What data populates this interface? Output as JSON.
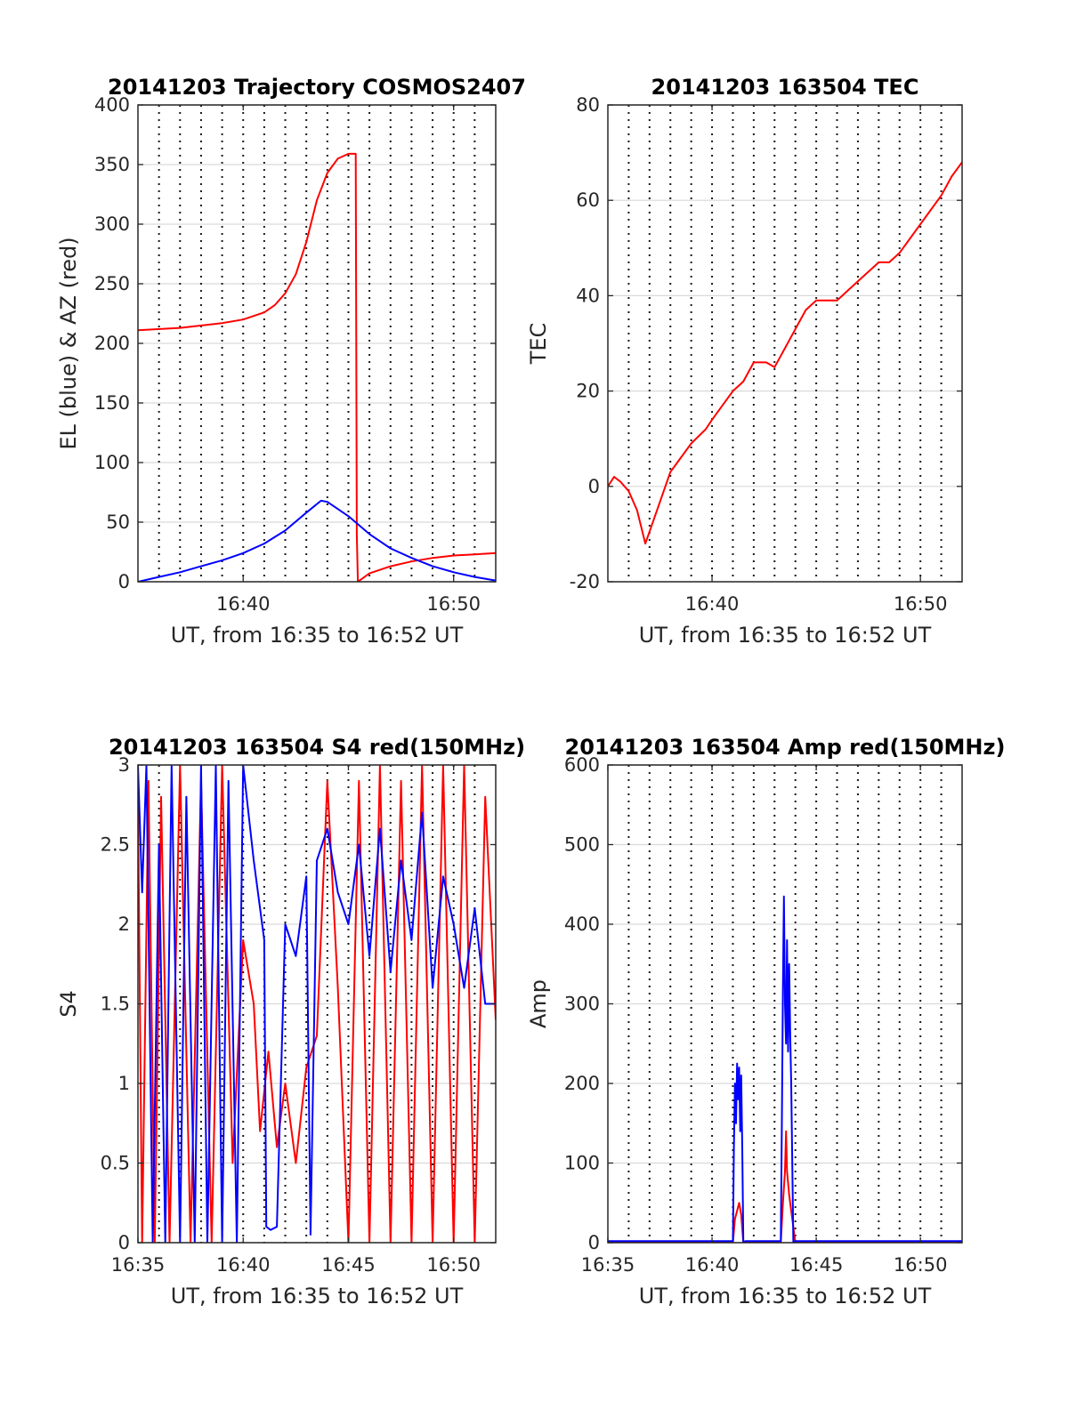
{
  "colors": {
    "red": "#ff0000",
    "blue": "#0000ff"
  },
  "chart_data": [
    {
      "type": "line",
      "title": "20141203 Trajectory COSMOS2407",
      "xlabel": "UT, from 16:35 to 16:52 UT",
      "ylabel": "EL (blue) & AZ (red)",
      "xlim_minutes": [
        0,
        17
      ],
      "ylim": [
        0,
        400
      ],
      "yticks": [
        0,
        50,
        100,
        150,
        200,
        250,
        300,
        350,
        400
      ],
      "yticklabels": [
        "0",
        "50",
        "100",
        "150",
        "200",
        "250",
        "300",
        "350",
        "400"
      ],
      "xticks_minutes": [
        5,
        15
      ],
      "xticklabels": [
        "16:40",
        "16:50"
      ],
      "vgrid_minutes": [
        1,
        2,
        3,
        4,
        5,
        6,
        7,
        8,
        9,
        10,
        11,
        12,
        13,
        14,
        15,
        16
      ],
      "series": [
        {
          "color": "red",
          "x": [
            0,
            2,
            4,
            5,
            6,
            6.5,
            7,
            7.5,
            8,
            8.5,
            9,
            9.5,
            10,
            10.35,
            10.4,
            10.45,
            11,
            12,
            13,
            14,
            15,
            16,
            17
          ],
          "y": [
            211,
            213,
            217,
            220,
            226,
            232,
            242,
            258,
            285,
            320,
            343,
            355,
            359,
            359,
            40,
            0,
            7,
            13,
            17,
            20,
            22,
            23,
            24
          ]
        },
        {
          "color": "blue",
          "x": [
            0,
            1,
            2,
            3,
            4,
            5,
            6,
            7,
            8,
            8.7,
            9,
            10,
            11,
            12,
            13,
            14,
            15,
            16,
            17
          ],
          "y": [
            0,
            4,
            8,
            13,
            18,
            24,
            32,
            43,
            58,
            68,
            67,
            55,
            40,
            28,
            20,
            13,
            8,
            4,
            1
          ]
        }
      ]
    },
    {
      "type": "line",
      "title": "20141203 163504 TEC",
      "xlabel": "UT, from 16:35 to 16:52 UT",
      "ylabel": "TEC",
      "xlim_minutes": [
        0,
        17
      ],
      "ylim": [
        -20,
        80
      ],
      "yticks": [
        -20,
        0,
        20,
        40,
        60,
        80
      ],
      "yticklabels": [
        "-20",
        "0",
        "20",
        "40",
        "60",
        "80"
      ],
      "xticks_minutes": [
        5,
        15
      ],
      "xticklabels": [
        "16:40",
        "16:50"
      ],
      "vgrid_minutes": [
        1,
        2,
        3,
        4,
        5,
        6,
        7,
        8,
        9,
        10,
        11,
        12,
        13,
        14,
        15,
        16
      ],
      "series": [
        {
          "color": "red",
          "x": [
            0,
            0.3,
            0.6,
            1,
            1.4,
            1.8,
            2.2,
            3,
            4,
            4.7,
            5,
            5.5,
            6,
            6.5,
            7,
            7.6,
            8,
            8.5,
            9,
            9.5,
            10,
            10.5,
            11,
            11.5,
            12,
            12.5,
            13,
            13.5,
            14,
            14.5,
            15,
            15.5,
            16,
            16.5,
            17
          ],
          "y": [
            0,
            2,
            1,
            -1,
            -5,
            -12,
            -7,
            3,
            9,
            12,
            14,
            17,
            20,
            22,
            26,
            26,
            25,
            29,
            33,
            37,
            39,
            39,
            39,
            41,
            43,
            45,
            47,
            47,
            49,
            52,
            55,
            58,
            61,
            65,
            68
          ]
        }
      ]
    },
    {
      "type": "line",
      "title": "20141203 163504 S4 red(150MHz)",
      "xlabel": "UT, from 16:35 to 16:52 UT",
      "ylabel": "S4",
      "xlim_minutes": [
        0,
        17
      ],
      "ylim": [
        0,
        3
      ],
      "yticks": [
        0,
        0.5,
        1,
        1.5,
        2,
        2.5,
        3
      ],
      "yticklabels": [
        "0",
        "0.5",
        "1",
        "1.5",
        "2",
        "2.5",
        "3"
      ],
      "xticks_minutes": [
        0,
        5,
        10,
        15
      ],
      "xticklabels": [
        "16:35",
        "16:40",
        "16:45",
        "16:50"
      ],
      "vgrid_minutes": [
        1,
        2,
        3,
        4,
        5,
        6,
        7,
        8,
        9,
        10,
        11,
        12,
        13,
        14,
        15,
        16
      ],
      "series": [
        {
          "color": "red",
          "x": [
            0,
            0.2,
            0.5,
            0.8,
            1.1,
            1.5,
            2,
            2.5,
            3,
            3.5,
            4,
            4.5,
            5,
            5.5,
            5.8,
            6.2,
            6.6,
            7,
            7.5,
            8,
            8.5,
            9,
            9.5,
            10,
            10.5,
            11,
            11.5,
            12,
            12.5,
            13,
            13.5,
            14,
            14.5,
            15,
            15.5,
            16,
            16.5,
            17
          ],
          "y": [
            2.8,
            0,
            2.9,
            0,
            2.8,
            0,
            3,
            0,
            2.9,
            0,
            3,
            0.5,
            1.9,
            1.5,
            0.7,
            1.2,
            0.6,
            1.0,
            0.5,
            1.1,
            1.3,
            2.9,
            1.6,
            0,
            2.9,
            0,
            3,
            0,
            2.9,
            0,
            3,
            0,
            3,
            0,
            3,
            0,
            2.8,
            1.4
          ]
        },
        {
          "color": "blue",
          "x": [
            0,
            0.2,
            0.4,
            0.7,
            1,
            1.3,
            1.6,
            2,
            2.3,
            2.7,
            3,
            3.3,
            3.7,
            4,
            4.3,
            4.7,
            5,
            5.5,
            6,
            6.1,
            6.3,
            6.6,
            7,
            7.5,
            8,
            8.2,
            8.5,
            9,
            9.5,
            10,
            10.5,
            11,
            11.5,
            12,
            12.5,
            13,
            13.5,
            14,
            14.5,
            15,
            15.5,
            16,
            16.5,
            17
          ],
          "y": [
            3,
            2.2,
            3,
            0,
            2.5,
            0,
            3,
            0,
            2.8,
            0,
            3,
            0,
            3,
            0,
            2.9,
            0,
            3,
            2.4,
            1.9,
            0.1,
            0.08,
            0.1,
            2.0,
            1.8,
            2.3,
            0.05,
            2.4,
            2.6,
            2.2,
            2.0,
            2.5,
            1.8,
            2.6,
            1.7,
            2.4,
            1.9,
            2.7,
            1.6,
            2.3,
            2.0,
            1.6,
            2.1,
            1.5,
            1.5
          ]
        }
      ]
    },
    {
      "type": "line",
      "title": "20141203 163504 Amp red(150MHz)",
      "xlabel": "UT, from 16:35 to 16:52 UT",
      "ylabel": "Amp",
      "xlim_minutes": [
        0,
        17
      ],
      "ylim": [
        0,
        600
      ],
      "yticks": [
        0,
        100,
        200,
        300,
        400,
        500,
        600
      ],
      "yticklabels": [
        "0",
        "100",
        "200",
        "300",
        "400",
        "500",
        "600"
      ],
      "xticks_minutes": [
        0,
        5,
        10,
        15
      ],
      "xticklabels": [
        "16:35",
        "16:40",
        "16:45",
        "16:50"
      ],
      "vgrid_minutes": [
        1,
        2,
        3,
        4,
        5,
        6,
        7,
        8,
        9,
        10,
        11,
        12,
        13,
        14,
        15,
        16
      ],
      "series": [
        {
          "color": "red",
          "x": [
            0,
            6.0,
            6.1,
            6.2,
            6.3,
            6.4,
            6.5,
            7.0,
            8.3,
            8.4,
            8.5,
            8.55,
            8.6,
            8.7,
            8.8,
            9.0,
            17
          ],
          "y": [
            0,
            0,
            30,
            40,
            50,
            35,
            0,
            0,
            0,
            50,
            90,
            140,
            90,
            60,
            40,
            0,
            0
          ]
        },
        {
          "color": "blue",
          "x": [
            0,
            6.0,
            6.05,
            6.1,
            6.15,
            6.2,
            6.25,
            6.3,
            6.35,
            6.4,
            6.45,
            6.5,
            6.6,
            7.0,
            8.3,
            8.35,
            8.4,
            8.45,
            8.5,
            8.55,
            8.6,
            8.65,
            8.7,
            8.75,
            8.8,
            8.9,
            9.0,
            17
          ],
          "y": [
            2,
            2,
            120,
            200,
            150,
            225,
            180,
            220,
            140,
            210,
            120,
            0,
            2,
            2,
            2,
            150,
            320,
            435,
            300,
            250,
            380,
            240,
            350,
            260,
            200,
            0,
            2,
            2
          ]
        }
      ]
    }
  ]
}
